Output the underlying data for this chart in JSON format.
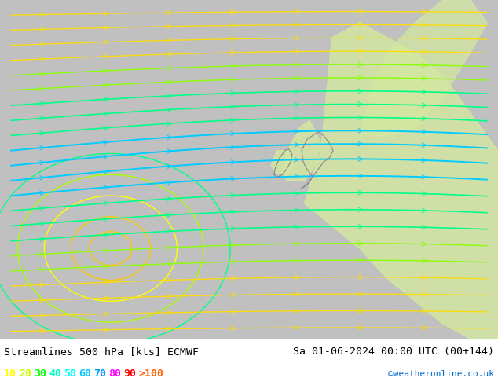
{
  "title_left": "Streamlines 500 hPa [kts] ECMWF",
  "title_right": "Sa 01-06-2024 00:00 UTC (00+144)",
  "credit": "©weatheronline.co.uk",
  "background_color": "#d0d0d0",
  "map_bg_color": "#c8c8c8",
  "legend_values": [
    "10",
    "20",
    "30",
    "40",
    "50",
    "60",
    "70",
    "80",
    "90",
    ">100"
  ],
  "legend_colors": [
    "#ffff00",
    "#c8ff00",
    "#00ff00",
    "#00ffc8",
    "#00ffff",
    "#00c8ff",
    "#0096ff",
    "#ff00ff",
    "#ff0000",
    "#ff6400"
  ],
  "bottom_bar_color": "#ffffff",
  "streamline_colors": {
    "very_slow": "#ffaa00",
    "slow": "#ffff00",
    "slow_med": "#aaff00",
    "med": "#00ff00",
    "med_fast": "#00ffaa",
    "fast": "#00ffff",
    "faster": "#00aaff",
    "very_fast": "#0055ff",
    "ultra": "#0000ff"
  },
  "land_color": "#e8e8d0",
  "sea_color": "#c8c8c8",
  "green_region_color": "#90ee90"
}
